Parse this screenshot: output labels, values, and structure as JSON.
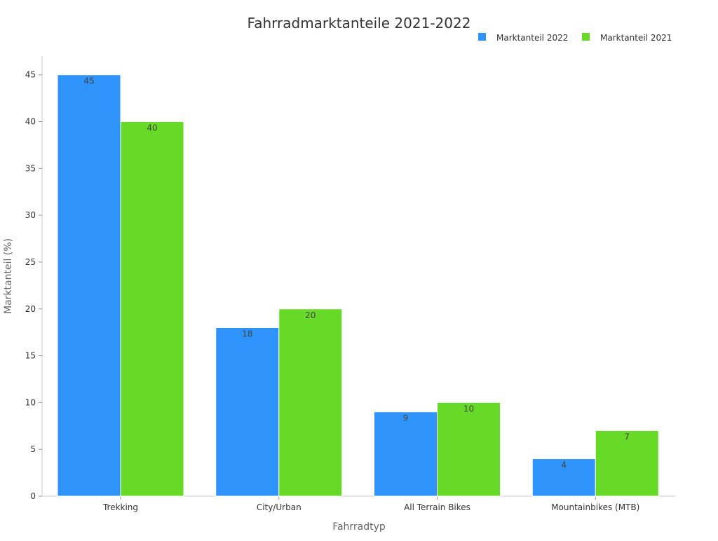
{
  "chart_data": {
    "type": "bar",
    "title": "Fahrradmarktanteile 2021-2022",
    "xlabel": "Fahrradtyp",
    "ylabel": "Marktanteil (%)",
    "categories": [
      "Trekking",
      "City/Urban",
      "All Terrain Bikes",
      "Mountainbikes (MTB)"
    ],
    "series": [
      {
        "name": "Marktanteil 2022",
        "color": "#2e93fa",
        "values": [
          45,
          18,
          9,
          4
        ]
      },
      {
        "name": "Marktanteil 2021",
        "color": "#66da26",
        "values": [
          40,
          20,
          10,
          7
        ]
      }
    ],
    "ylim": [
      0,
      47
    ],
    "yticks": [
      0,
      5,
      10,
      15,
      20,
      25,
      30,
      35,
      40,
      45
    ],
    "grid": false,
    "legend": "top-right"
  }
}
